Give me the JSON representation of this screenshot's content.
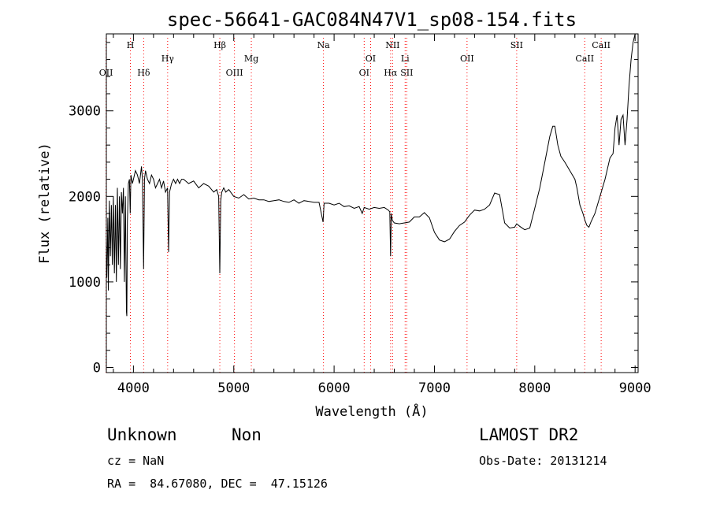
{
  "chart_data": {
    "type": "line",
    "title": "spec-56641-GAC084N47V1_sp08-154.fits",
    "xlabel": "Wavelength (Å)",
    "ylabel": "Flux (relative)",
    "xlim": [
      3730,
      9030
    ],
    "ylim": [
      -60,
      3900
    ],
    "xticks": [
      4000,
      5000,
      6000,
      7000,
      8000,
      9000
    ],
    "yticks": [
      0,
      1000,
      2000,
      3000
    ],
    "line_color": "#000000",
    "marker_color": "#ff0000",
    "grid": false,
    "spectrum": {
      "x": [
        3735,
        3745,
        3750,
        3760,
        3770,
        3780,
        3790,
        3800,
        3810,
        3820,
        3830,
        3840,
        3850,
        3860,
        3870,
        3880,
        3890,
        3900,
        3910,
        3920,
        3930,
        3934,
        3940,
        3950,
        3960,
        3968,
        3975,
        3990,
        4000,
        4020,
        4040,
        4060,
        4080,
        4090,
        4101,
        4110,
        4120,
        4140,
        4160,
        4180,
        4200,
        4220,
        4240,
        4260,
        4280,
        4300,
        4320,
        4340,
        4350,
        4360,
        4380,
        4400,
        4420,
        4440,
        4460,
        4480,
        4500,
        4550,
        4600,
        4650,
        4700,
        4750,
        4800,
        4830,
        4850,
        4861,
        4870,
        4880,
        4900,
        4920,
        4950,
        5000,
        5050,
        5100,
        5150,
        5200,
        5250,
        5300,
        5350,
        5400,
        5450,
        5500,
        5550,
        5600,
        5650,
        5700,
        5750,
        5800,
        5850,
        5890,
        5900,
        5950,
        6000,
        6050,
        6100,
        6150,
        6200,
        6250,
        6280,
        6300,
        6350,
        6400,
        6450,
        6500,
        6540,
        6555,
        6563,
        6570,
        6580,
        6600,
        6650,
        6700,
        6750,
        6800,
        6850,
        6900,
        6950,
        7000,
        7050,
        7100,
        7150,
        7200,
        7250,
        7300,
        7350,
        7400,
        7450,
        7500,
        7550,
        7600,
        7650,
        7700,
        7750,
        7800,
        7820,
        7850,
        7900,
        7950,
        8000,
        8050,
        8100,
        8150,
        8180,
        8200,
        8230,
        8260,
        8300,
        8350,
        8400,
        8420,
        8450,
        8480,
        8500,
        8520,
        8540,
        8560,
        8600,
        8650,
        8700,
        8750,
        8780,
        8800,
        8820,
        8840,
        8860,
        8880,
        8900,
        8920,
        8940,
        8960,
        8980,
        9000
      ],
      "y": [
        1050,
        1750,
        900,
        1950,
        1300,
        1900,
        1200,
        2000,
        1100,
        1900,
        1000,
        2100,
        1200,
        2000,
        1150,
        2050,
        1800,
        2100,
        1000,
        2000,
        650,
        600,
        1700,
        2150,
        2200,
        1800,
        2250,
        2150,
        2200,
        2300,
        2250,
        2150,
        2350,
        2200,
        1150,
        2200,
        2300,
        2200,
        2150,
        2250,
        2200,
        2100,
        2150,
        2200,
        2100,
        2180,
        2050,
        2100,
        1350,
        2050,
        2150,
        2200,
        2150,
        2200,
        2150,
        2200,
        2200,
        2150,
        2180,
        2100,
        2150,
        2120,
        2050,
        2080,
        2000,
        1100,
        1950,
        2050,
        2100,
        2050,
        2080,
        2000,
        1980,
        2020,
        1970,
        1980,
        1960,
        1960,
        1940,
        1950,
        1960,
        1940,
        1930,
        1960,
        1920,
        1950,
        1940,
        1930,
        1930,
        1700,
        1920,
        1920,
        1900,
        1920,
        1880,
        1890,
        1860,
        1880,
        1800,
        1870,
        1850,
        1870,
        1860,
        1870,
        1840,
        1820,
        1300,
        1800,
        1720,
        1690,
        1680,
        1690,
        1700,
        1760,
        1760,
        1810,
        1750,
        1580,
        1490,
        1470,
        1500,
        1590,
        1660,
        1700,
        1780,
        1840,
        1830,
        1850,
        1900,
        2040,
        2020,
        1690,
        1630,
        1640,
        1680,
        1650,
        1610,
        1630,
        1860,
        2100,
        2400,
        2700,
        2820,
        2820,
        2600,
        2470,
        2400,
        2300,
        2200,
        2100,
        1900,
        1800,
        1720,
        1660,
        1640,
        1700,
        1800,
        2000,
        2200,
        2450,
        2500,
        2800,
        2950,
        2600,
        2900,
        2950,
        2600,
        2900,
        3300,
        3600,
        3800,
        3900
      ]
    },
    "line_markers": [
      {
        "label": "OII",
        "x": 3727,
        "row": 2
      },
      {
        "label": "H",
        "x": 3970,
        "row": 0
      },
      {
        "label": "Hδ",
        "x": 4102,
        "row": 2
      },
      {
        "label": "Hγ",
        "x": 4341,
        "row": 1
      },
      {
        "label": "Hβ",
        "x": 4861,
        "row": 0
      },
      {
        "label": "OIII",
        "x": 5007,
        "row": 2
      },
      {
        "label": "Mg",
        "x": 5175,
        "row": 1
      },
      {
        "label": "Na",
        "x": 5894,
        "row": 0
      },
      {
        "label": "OI",
        "x": 6300,
        "row": 2
      },
      {
        "label": "OI",
        "x": 6364,
        "row": 1
      },
      {
        "label": "NII",
        "x": 6583,
        "row": 0
      },
      {
        "label": "Hα",
        "x": 6563,
        "row": 2
      },
      {
        "label": "Li",
        "x": 6708,
        "row": 1
      },
      {
        "label": "SII",
        "x": 6724,
        "row": 2
      },
      {
        "label": "OII",
        "x": 7325,
        "row": 1
      },
      {
        "label": "SII",
        "x": 7820,
        "row": 0
      },
      {
        "label": "CaII",
        "x": 8498,
        "row": 1
      },
      {
        "label": "CaII",
        "x": 8662,
        "row": 0
      }
    ]
  },
  "info": {
    "class": "Unknown",
    "subclass": "Non",
    "survey": "LAMOST DR2",
    "cz": "cz = NaN",
    "obs_date": "Obs-Date: 20131214",
    "radec": "RA =  84.67080, DEC =  47.15126"
  }
}
